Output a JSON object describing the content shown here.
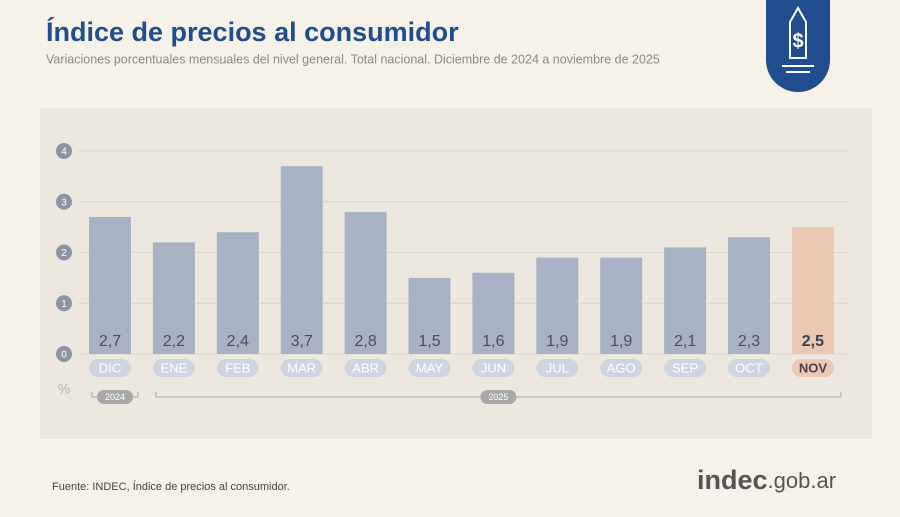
{
  "chart_data": {
    "type": "bar",
    "title": "Índice de precios al consumidor",
    "subtitle": "Variaciones porcentuales mensuales del nivel general. Total nacional. Diciembre de 2024 a noviembre de 2025",
    "y_label": "%",
    "categories": [
      "DIC",
      "ENE",
      "FEB",
      "MAR",
      "ABR",
      "MAY",
      "JUN",
      "JUL",
      "AGO",
      "SEP",
      "OCT",
      "NOV"
    ],
    "values": [
      2.7,
      2.2,
      2.4,
      3.7,
      2.8,
      1.5,
      1.6,
      1.9,
      1.9,
      2.1,
      2.3,
      2.5
    ],
    "value_labels": [
      "2,7",
      "2,2",
      "2,4",
      "3,7",
      "2,8",
      "1,5",
      "1,6",
      "1,9",
      "1,9",
      "2,1",
      "2,3",
      "2,5"
    ],
    "colors": [
      "#a9b2c5",
      "#a9b2c5",
      "#a9b2c5",
      "#a9b2c5",
      "#a9b2c5",
      "#a9b2c5",
      "#a9b2c5",
      "#a9b2c5",
      "#a9b2c5",
      "#a9b2c5",
      "#a9b2c5",
      "#ebc8b3"
    ],
    "years": [
      "2024",
      "2025"
    ],
    "ylim": [
      0,
      4
    ],
    "yticks": [
      0,
      1,
      2,
      3,
      4
    ],
    "grid": true,
    "source": "Fuente: INDEC, Índice de precios al consumidor.",
    "logo": [
      "indec",
      ".gob.ar"
    ]
  }
}
